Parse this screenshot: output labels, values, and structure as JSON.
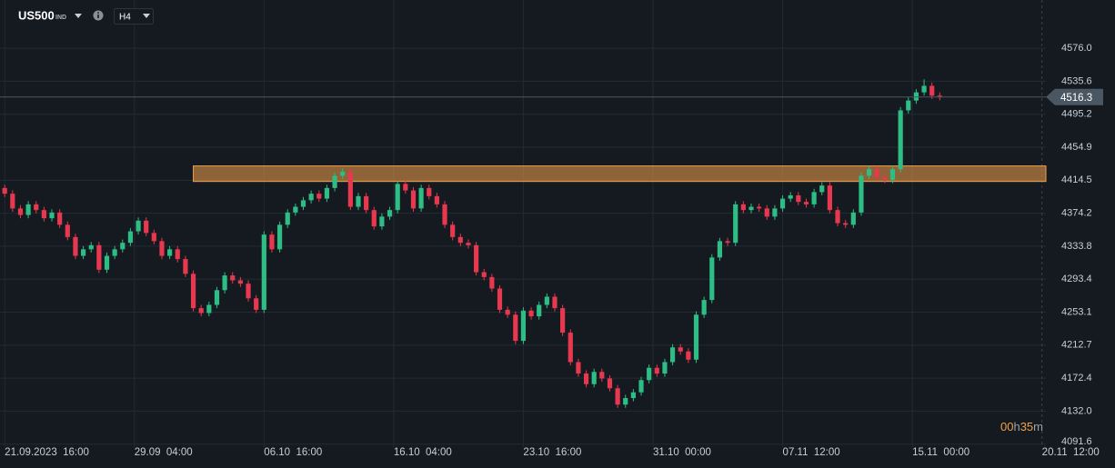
{
  "chart_data": {
    "type": "candlestick",
    "symbol": "US500",
    "market": "IND",
    "timeframe": "H4",
    "up_color": "#2ebd85",
    "down_color": "#e8384f",
    "grid": true,
    "open": [
      4405,
      4398,
      4380,
      4372,
      4385,
      4378,
      4368,
      4375,
      4360,
      4345,
      4322,
      4330,
      4335,
      4305,
      4322,
      4330,
      4338,
      4352,
      4365,
      4350,
      4340,
      4322,
      4330,
      4318,
      4300,
      4258,
      4252,
      4262,
      4280,
      4298,
      4292,
      4288,
      4270,
      4256,
      4348,
      4330,
      4360,
      4375,
      4382,
      4390,
      4398,
      4392,
      4405,
      4420,
      4425,
      4382,
      4395,
      4378,
      4358,
      4370,
      4378,
      4410,
      4402,
      4380,
      4405,
      4395,
      4385,
      4360,
      4345,
      4338,
      4335,
      4302,
      4296,
      4282,
      4256,
      4250,
      4218,
      4255,
      4248,
      4262,
      4272,
      4258,
      4228,
      4192,
      4178,
      4165,
      4180,
      4172,
      4160,
      4140,
      4148,
      4155,
      4170,
      4185,
      4178,
      4192,
      4210,
      4205,
      4195,
      4250,
      4268,
      4320,
      4340,
      4338,
      4385,
      4378,
      4382,
      4380,
      4370,
      4380,
      4392,
      4396,
      4388,
      4385,
      4400,
      4408,
      4378,
      4362,
      4360,
      4375,
      4420,
      4428,
      4418,
      4415,
      4428,
      4500,
      4512,
      4522,
      4530,
      4518
    ],
    "high": [
      4409,
      4402,
      4384,
      4389,
      4389,
      4382,
      4379,
      4379,
      4364,
      4349,
      4334,
      4339,
      4339,
      4326,
      4334,
      4342,
      4356,
      4369,
      4369,
      4354,
      4344,
      4334,
      4334,
      4322,
      4304,
      4262,
      4266,
      4284,
      4302,
      4302,
      4296,
      4292,
      4274,
      4352,
      4352,
      4364,
      4379,
      4386,
      4394,
      4402,
      4402,
      4409,
      4424,
      4429,
      4429,
      4399,
      4399,
      4382,
      4374,
      4382,
      4414,
      4414,
      4406,
      4409,
      4409,
      4399,
      4389,
      4364,
      4349,
      4342,
      4339,
      4306,
      4300,
      4286,
      4260,
      4254,
      4259,
      4259,
      4266,
      4276,
      4276,
      4262,
      4232,
      4196,
      4182,
      4184,
      4184,
      4176,
      4164,
      4152,
      4159,
      4174,
      4189,
      4189,
      4196,
      4214,
      4214,
      4209,
      4254,
      4272,
      4324,
      4344,
      4344,
      4389,
      4389,
      4386,
      4386,
      4384,
      4384,
      4396,
      4400,
      4400,
      4392,
      4404,
      4412,
      4412,
      4382,
      4366,
      4379,
      4424,
      4432,
      4432,
      4422,
      4432,
      4504,
      4516,
      4526,
      4538,
      4534,
      4522
    ],
    "low": [
      4394,
      4376,
      4368,
      4368,
      4374,
      4364,
      4364,
      4356,
      4341,
      4318,
      4318,
      4326,
      4301,
      4301,
      4318,
      4326,
      4334,
      4348,
      4346,
      4336,
      4318,
      4318,
      4314,
      4296,
      4254,
      4248,
      4248,
      4258,
      4276,
      4288,
      4284,
      4266,
      4252,
      4252,
      4326,
      4326,
      4356,
      4371,
      4378,
      4386,
      4388,
      4388,
      4401,
      4416,
      4378,
      4378,
      4374,
      4354,
      4354,
      4366,
      4374,
      4398,
      4376,
      4376,
      4391,
      4381,
      4356,
      4341,
      4334,
      4331,
      4298,
      4292,
      4278,
      4252,
      4246,
      4214,
      4214,
      4244,
      4244,
      4258,
      4254,
      4224,
      4188,
      4174,
      4161,
      4161,
      4168,
      4156,
      4136,
      4136,
      4144,
      4151,
      4166,
      4174,
      4174,
      4188,
      4201,
      4191,
      4191,
      4246,
      4264,
      4316,
      4334,
      4334,
      4374,
      4374,
      4376,
      4366,
      4366,
      4376,
      4388,
      4384,
      4381,
      4381,
      4396,
      4374,
      4358,
      4356,
      4356,
      4371,
      4416,
      4414,
      4411,
      4411,
      4424,
      4496,
      4508,
      4518,
      4514,
      4512.3
    ],
    "close": [
      4398,
      4380,
      4372,
      4385,
      4378,
      4368,
      4375,
      4360,
      4345,
      4322,
      4330,
      4335,
      4305,
      4322,
      4330,
      4338,
      4352,
      4365,
      4350,
      4340,
      4322,
      4330,
      4318,
      4300,
      4258,
      4252,
      4262,
      4280,
      4298,
      4292,
      4288,
      4270,
      4256,
      4348,
      4330,
      4360,
      4375,
      4382,
      4390,
      4398,
      4392,
      4405,
      4420,
      4425,
      4382,
      4395,
      4378,
      4358,
      4370,
      4378,
      4410,
      4402,
      4380,
      4405,
      4395,
      4385,
      4360,
      4345,
      4338,
      4335,
      4302,
      4296,
      4282,
      4256,
      4250,
      4218,
      4255,
      4248,
      4262,
      4272,
      4258,
      4228,
      4192,
      4178,
      4165,
      4180,
      4172,
      4160,
      4140,
      4148,
      4155,
      4170,
      4185,
      4178,
      4192,
      4210,
      4205,
      4195,
      4250,
      4268,
      4320,
      4340,
      4338,
      4385,
      4378,
      4382,
      4380,
      4370,
      4380,
      4392,
      4396,
      4388,
      4385,
      4400,
      4408,
      4378,
      4362,
      4360,
      4375,
      4420,
      4428,
      4418,
      4415,
      4428,
      4500,
      4512,
      4522,
      4530,
      4518,
      4516.3
    ],
    "xlim": [
      -0.6,
      132.5
    ],
    "xticks": [
      {
        "value": 0,
        "label": "21.09.2023  16:00"
      },
      {
        "value": 16.5,
        "label": "29.09  04:00"
      },
      {
        "value": 33,
        "label": "06.10  16:00"
      },
      {
        "value": 49.5,
        "label": "16.10  04:00"
      },
      {
        "value": 66,
        "label": "23.10  16:00"
      },
      {
        "value": 82.5,
        "label": "31.10  00:00"
      },
      {
        "value": 99,
        "label": "07.11  12:00"
      },
      {
        "value": 115.5,
        "label": "15.11  00:00"
      },
      {
        "value": 132,
        "label": "20.11  12:00"
      }
    ],
    "ylim": [
      4088,
      4635
    ],
    "yticks": [
      {
        "value": 4576,
        "label": "4576.0"
      },
      4535.6,
      4495.2,
      4454.9,
      4414.5,
      4374.2,
      4333.8,
      4293.4,
      4253.1,
      4212.7,
      4172.4,
      {
        "value": 4132,
        "label": "4132.0"
      },
      4091.6
    ],
    "last_price": 4516.3,
    "zone": {
      "low": 4413,
      "high": 4432,
      "start": 24,
      "color": "#f0a04b"
    },
    "countdown": [
      "00",
      "h",
      "35",
      "m"
    ]
  }
}
